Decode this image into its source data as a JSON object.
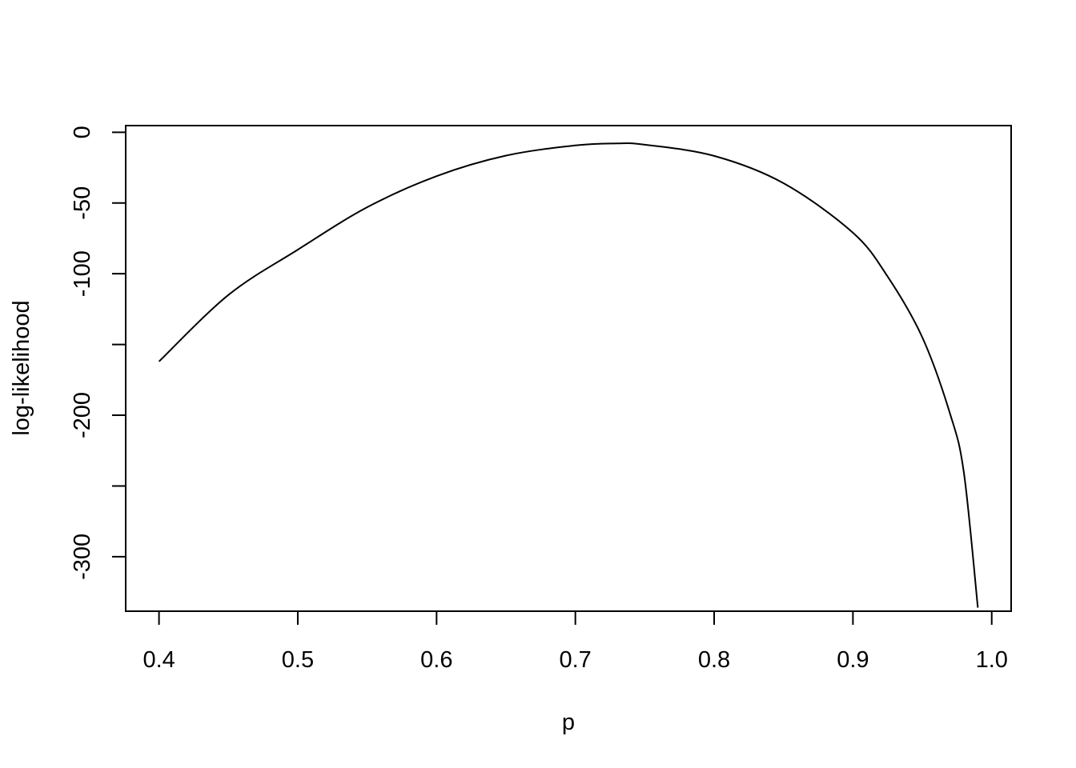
{
  "chart_data": {
    "type": "line",
    "title": "",
    "xlabel": "p",
    "ylabel": "log-likelihood",
    "xlim": [
      0.376,
      1.014
    ],
    "ylim": [
      -338.5,
      4.7
    ],
    "grid": false,
    "x_ticks": [
      0.4,
      0.5,
      0.6,
      0.7,
      0.8,
      0.9,
      1.0
    ],
    "x_tick_labels": [
      "0.4",
      "0.5",
      "0.6",
      "0.7",
      "0.8",
      "0.9",
      "1.0"
    ],
    "y_ticks": [
      0,
      -50,
      -100,
      -150,
      -200,
      -250,
      -300
    ],
    "y_tick_labels": [
      "0",
      "-50",
      "-100",
      "",
      "-200",
      "",
      "-300"
    ],
    "series": [
      {
        "color": "#000000",
        "x": [
          0.4,
          0.45,
          0.5,
          0.55,
          0.6,
          0.65,
          0.7,
          0.73,
          0.75,
          0.8,
          0.85,
          0.9,
          0.925,
          0.95,
          0.97,
          0.98,
          0.99
        ],
        "y": [
          -162,
          -115,
          -83,
          -53,
          -31,
          -16.5,
          -9.3,
          -7.9,
          -8.8,
          -16.7,
          -36,
          -71,
          -102,
          -145,
          -199,
          -241,
          -336
        ]
      }
    ]
  }
}
